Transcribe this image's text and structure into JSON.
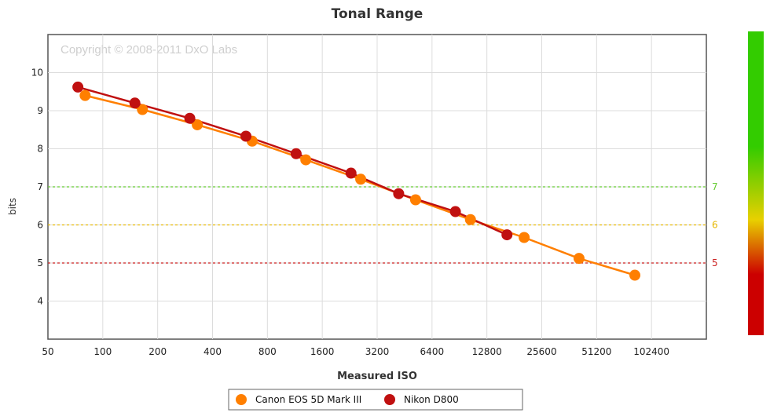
{
  "chart_data": {
    "type": "line",
    "title": "Tonal Range",
    "xlabel": "Measured ISO",
    "ylabel": "bits",
    "copyright": "Copyright © 2008-2011 DxO Labs",
    "x_scale": "log2",
    "xlim": [
      50,
      204800
    ],
    "ylim": [
      3,
      11
    ],
    "x_ticks": [
      50,
      100,
      200,
      400,
      800,
      1600,
      3200,
      6400,
      12800,
      25600,
      51200,
      102400
    ],
    "x_tick_labels": [
      "50",
      "100",
      "200",
      "400",
      "800",
      "1600",
      "3200",
      "6400",
      "12800",
      "25600",
      "51200",
      "102400"
    ],
    "y_ticks": [
      4,
      5,
      6,
      7,
      8,
      9,
      10
    ],
    "grid": true,
    "legend_position": "bottom-center",
    "thresholds": [
      {
        "value": 7,
        "label": "7",
        "color": "#66cc33"
      },
      {
        "value": 6,
        "label": "6",
        "color": "#e6b800"
      },
      {
        "value": 5,
        "label": "5",
        "color": "#cc2222"
      }
    ],
    "color_scale": {
      "top": "#33cc00",
      "middle": "#e8d000",
      "bottom": "#cc0000"
    },
    "series": [
      {
        "name": "Canon EOS 5D Mark III",
        "color": "#ff7f00",
        "points": [
          {
            "x": 80,
            "y": 9.4
          },
          {
            "x": 165,
            "y": 9.03
          },
          {
            "x": 330,
            "y": 8.63
          },
          {
            "x": 660,
            "y": 8.2
          },
          {
            "x": 1300,
            "y": 7.71
          },
          {
            "x": 2600,
            "y": 7.2
          },
          {
            "x": 5200,
            "y": 6.66
          },
          {
            "x": 10400,
            "y": 6.14
          },
          {
            "x": 20500,
            "y": 5.67
          },
          {
            "x": 41000,
            "y": 5.12
          },
          {
            "x": 83000,
            "y": 4.68
          }
        ]
      },
      {
        "name": "Nikon D800",
        "color": "#c01010",
        "points": [
          {
            "x": 73,
            "y": 9.62
          },
          {
            "x": 150,
            "y": 9.2
          },
          {
            "x": 300,
            "y": 8.8
          },
          {
            "x": 610,
            "y": 8.33
          },
          {
            "x": 1150,
            "y": 7.87
          },
          {
            "x": 2300,
            "y": 7.36
          },
          {
            "x": 4200,
            "y": 6.82
          },
          {
            "x": 8600,
            "y": 6.35
          },
          {
            "x": 16500,
            "y": 5.74
          }
        ]
      }
    ]
  }
}
